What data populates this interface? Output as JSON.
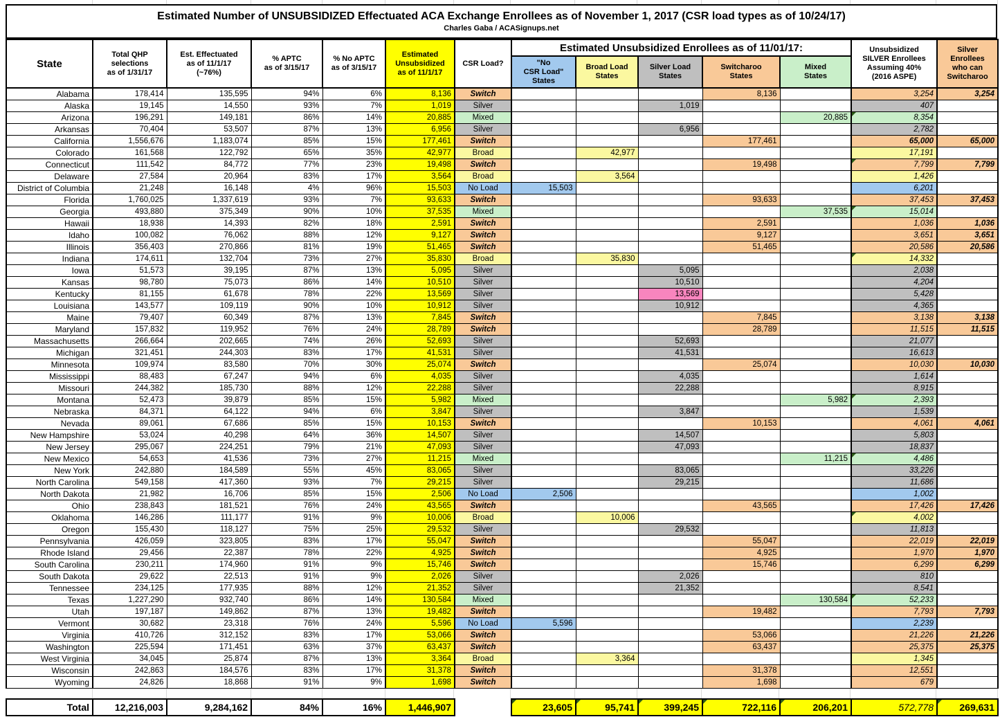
{
  "title": "Estimated Number of UNSUBSIDIZED Effectuated ACA Exchange Enrollees as of November 1, 2017 (CSR load types as of 10/24/17)",
  "subtitle": "Charles Gaba / ACASignups.net",
  "columns": {
    "state": "State",
    "qhp": "Total QHP\nselections\nas of 1/31/17",
    "eff": "Est. Effectuated\nas of 11/1/17\n(~76%)",
    "aptc": "% APTC\nas of 3/15/17",
    "noaptc": "% No APTC\nas of 3/15/17",
    "unsub": "Estimated\nUnsubsidized\nas of 11/1/17",
    "csr": "CSR Load?",
    "group": "Estimated Unsubsidized Enrollees as of 11/01/17:",
    "noload": "\"No\nCSR Load\"\nStates",
    "broad": "Broad Load\nStates",
    "silverload": "Silver Load\nStates",
    "switcharoo": "Switcharoo\nStates",
    "mixed": "Mixed\nStates",
    "silver40": "Unsubsidized\nSILVER Enrollees\nAssuming 40%\n(2016 ASPE)",
    "canswitch": "Silver\nEnrollees\nwho can\nSwitcharoo"
  },
  "colors": {
    "unsub_yellow": "#FFFF00",
    "no_load_blue": "#A2C9EE",
    "broad_pale_yellow": "#FBF8A0",
    "silver_gray": "#BFBFBF",
    "switcharoo_orange": "#F9C998",
    "mixed_green": "#C9EFC9",
    "kentucky_pink": "#F885BE",
    "note_flag_green": "#2D5C17"
  },
  "load_type_labels": [
    "Switch",
    "Silver",
    "Mixed",
    "Broad",
    "No Load"
  ],
  "rows": [
    {
      "state": "Alabama",
      "qhp": "178,414",
      "eff": "135,595",
      "aptc": "94%",
      "noaptc": "6%",
      "unsub": "8,136",
      "load": "Switch",
      "s40": "3,254",
      "sw": "3,254"
    },
    {
      "state": "Alaska",
      "qhp": "19,145",
      "eff": "14,550",
      "aptc": "93%",
      "noaptc": "7%",
      "unsub": "1,019",
      "load": "Silver",
      "s40": "407",
      "sw": ""
    },
    {
      "state": "Arizona",
      "qhp": "196,291",
      "eff": "149,181",
      "aptc": "86%",
      "noaptc": "14%",
      "unsub": "20,885",
      "load": "Mixed",
      "s40": "8,354",
      "sw": "",
      "flag": true
    },
    {
      "state": "Arkansas",
      "qhp": "70,404",
      "eff": "53,507",
      "aptc": "87%",
      "noaptc": "13%",
      "unsub": "6,956",
      "load": "Silver",
      "s40": "2,782",
      "sw": ""
    },
    {
      "state": "California",
      "qhp": "1,556,676",
      "eff": "1,183,074",
      "aptc": "85%",
      "noaptc": "15%",
      "unsub": "177,461",
      "load": "Switch",
      "s40": "65,000",
      "sw": "65,000",
      "bold": true
    },
    {
      "state": "Colorado",
      "qhp": "161,568",
      "eff": "122,792",
      "aptc": "65%",
      "noaptc": "35%",
      "unsub": "42,977",
      "load": "Broad",
      "s40": "17,191",
      "sw": ""
    },
    {
      "state": "Connecticut",
      "qhp": "111,542",
      "eff": "84,772",
      "aptc": "77%",
      "noaptc": "23%",
      "unsub": "19,498",
      "load": "Switch",
      "s40": "7,799",
      "sw": "7,799",
      "flag": true
    },
    {
      "state": "Delaware",
      "qhp": "27,584",
      "eff": "20,964",
      "aptc": "83%",
      "noaptc": "17%",
      "unsub": "3,564",
      "load": "Broad",
      "s40": "1,426",
      "sw": ""
    },
    {
      "state": "District of Columbia",
      "qhp": "21,248",
      "eff": "16,148",
      "aptc": "4%",
      "noaptc": "96%",
      "unsub": "15,503",
      "load": "No Load",
      "s40": "6,201",
      "sw": ""
    },
    {
      "state": "Florida",
      "qhp": "1,760,025",
      "eff": "1,337,619",
      "aptc": "93%",
      "noaptc": "7%",
      "unsub": "93,633",
      "load": "Switch",
      "s40": "37,453",
      "sw": "37,453"
    },
    {
      "state": "Georgia",
      "qhp": "493,880",
      "eff": "375,349",
      "aptc": "90%",
      "noaptc": "10%",
      "unsub": "37,535",
      "load": "Mixed",
      "s40": "15,014",
      "sw": "",
      "flag": true
    },
    {
      "state": "Hawaii",
      "qhp": "18,938",
      "eff": "14,393",
      "aptc": "82%",
      "noaptc": "18%",
      "unsub": "2,591",
      "load": "Switch",
      "s40": "1,036",
      "sw": "1,036"
    },
    {
      "state": "Idaho",
      "qhp": "100,082",
      "eff": "76,062",
      "aptc": "88%",
      "noaptc": "12%",
      "unsub": "9,127",
      "load": "Switch",
      "s40": "3,651",
      "sw": "3,651"
    },
    {
      "state": "Illinois",
      "qhp": "356,403",
      "eff": "270,866",
      "aptc": "81%",
      "noaptc": "19%",
      "unsub": "51,465",
      "load": "Switch",
      "s40": "20,586",
      "sw": "20,586"
    },
    {
      "state": "Indiana",
      "qhp": "174,611",
      "eff": "132,704",
      "aptc": "73%",
      "noaptc": "27%",
      "unsub": "35,830",
      "load": "Broad",
      "s40": "14,332",
      "sw": "",
      "flag": true
    },
    {
      "state": "Iowa",
      "qhp": "51,573",
      "eff": "39,195",
      "aptc": "87%",
      "noaptc": "13%",
      "unsub": "5,095",
      "load": "Silver",
      "s40": "2,038",
      "sw": ""
    },
    {
      "state": "Kansas",
      "qhp": "98,780",
      "eff": "75,073",
      "aptc": "86%",
      "noaptc": "14%",
      "unsub": "10,510",
      "load": "Silver",
      "s40": "4,204",
      "sw": ""
    },
    {
      "state": "Kentucky",
      "qhp": "81,155",
      "eff": "61,678",
      "aptc": "78%",
      "noaptc": "22%",
      "unsub": "13,569",
      "load": "Silver",
      "s40": "5,428",
      "sw": "",
      "pink": true
    },
    {
      "state": "Louisiana",
      "qhp": "143,577",
      "eff": "109,119",
      "aptc": "90%",
      "noaptc": "10%",
      "unsub": "10,912",
      "load": "Silver",
      "s40": "4,365",
      "sw": ""
    },
    {
      "state": "Maine",
      "qhp": "79,407",
      "eff": "60,349",
      "aptc": "87%",
      "noaptc": "13%",
      "unsub": "7,845",
      "load": "Switch",
      "s40": "3,138",
      "sw": "3,138"
    },
    {
      "state": "Maryland",
      "qhp": "157,832",
      "eff": "119,952",
      "aptc": "76%",
      "noaptc": "24%",
      "unsub": "28,789",
      "load": "Switch",
      "s40": "11,515",
      "sw": "11,515"
    },
    {
      "state": "Massachusetts",
      "qhp": "266,664",
      "eff": "202,665",
      "aptc": "74%",
      "noaptc": "26%",
      "unsub": "52,693",
      "load": "Silver",
      "s40": "21,077",
      "sw": ""
    },
    {
      "state": "Michigan",
      "qhp": "321,451",
      "eff": "244,303",
      "aptc": "83%",
      "noaptc": "17%",
      "unsub": "41,531",
      "load": "Silver",
      "s40": "16,613",
      "sw": ""
    },
    {
      "state": "Minnesota",
      "qhp": "109,974",
      "eff": "83,580",
      "aptc": "70%",
      "noaptc": "30%",
      "unsub": "25,074",
      "load": "Switch",
      "s40": "10,030",
      "sw": "10,030"
    },
    {
      "state": "Mississippi",
      "qhp": "88,483",
      "eff": "67,247",
      "aptc": "94%",
      "noaptc": "6%",
      "unsub": "4,035",
      "load": "Silver",
      "s40": "1,614",
      "sw": ""
    },
    {
      "state": "Missouri",
      "qhp": "244,382",
      "eff": "185,730",
      "aptc": "88%",
      "noaptc": "12%",
      "unsub": "22,288",
      "load": "Silver",
      "s40": "8,915",
      "sw": ""
    },
    {
      "state": "Montana",
      "qhp": "52,473",
      "eff": "39,879",
      "aptc": "85%",
      "noaptc": "15%",
      "unsub": "5,982",
      "load": "Mixed",
      "s40": "2,393",
      "sw": "",
      "flag": true
    },
    {
      "state": "Nebraska",
      "qhp": "84,371",
      "eff": "64,122",
      "aptc": "94%",
      "noaptc": "6%",
      "unsub": "3,847",
      "load": "Silver",
      "s40": "1,539",
      "sw": ""
    },
    {
      "state": "Nevada",
      "qhp": "89,061",
      "eff": "67,686",
      "aptc": "85%",
      "noaptc": "15%",
      "unsub": "10,153",
      "load": "Switch",
      "s40": "4,061",
      "sw": "4,061"
    },
    {
      "state": "New Hampshire",
      "qhp": "53,024",
      "eff": "40,298",
      "aptc": "64%",
      "noaptc": "36%",
      "unsub": "14,507",
      "load": "Silver",
      "s40": "5,803",
      "sw": ""
    },
    {
      "state": "New Jersey",
      "qhp": "295,067",
      "eff": "224,251",
      "aptc": "79%",
      "noaptc": "21%",
      "unsub": "47,093",
      "load": "Silver",
      "s40": "18,837",
      "sw": ""
    },
    {
      "state": "New Mexico",
      "qhp": "54,653",
      "eff": "41,536",
      "aptc": "73%",
      "noaptc": "27%",
      "unsub": "11,215",
      "load": "Mixed",
      "s40": "4,486",
      "sw": "",
      "flag": true
    },
    {
      "state": "New York",
      "qhp": "242,880",
      "eff": "184,589",
      "aptc": "55%",
      "noaptc": "45%",
      "unsub": "83,065",
      "load": "Silver",
      "s40": "33,226",
      "sw": ""
    },
    {
      "state": "North Carolina",
      "qhp": "549,158",
      "eff": "417,360",
      "aptc": "93%",
      "noaptc": "7%",
      "unsub": "29,215",
      "load": "Silver",
      "s40": "11,686",
      "sw": ""
    },
    {
      "state": "North Dakota",
      "qhp": "21,982",
      "eff": "16,706",
      "aptc": "85%",
      "noaptc": "15%",
      "unsub": "2,506",
      "load": "No Load",
      "s40": "1,002",
      "sw": ""
    },
    {
      "state": "Ohio",
      "qhp": "238,843",
      "eff": "181,521",
      "aptc": "76%",
      "noaptc": "24%",
      "unsub": "43,565",
      "load": "Switch",
      "s40": "17,426",
      "sw": "17,426"
    },
    {
      "state": "Oklahoma",
      "qhp": "146,286",
      "eff": "111,177",
      "aptc": "91%",
      "noaptc": "9%",
      "unsub": "10,006",
      "load": "Broad",
      "s40": "4,002",
      "sw": "",
      "flag": true
    },
    {
      "state": "Oregon",
      "qhp": "155,430",
      "eff": "118,127",
      "aptc": "75%",
      "noaptc": "25%",
      "unsub": "29,532",
      "load": "Silver",
      "s40": "11,813",
      "sw": ""
    },
    {
      "state": "Pennsylvania",
      "qhp": "426,059",
      "eff": "323,805",
      "aptc": "83%",
      "noaptc": "17%",
      "unsub": "55,047",
      "load": "Switch",
      "s40": "22,019",
      "sw": "22,019"
    },
    {
      "state": "Rhode Island",
      "qhp": "29,456",
      "eff": "22,387",
      "aptc": "78%",
      "noaptc": "22%",
      "unsub": "4,925",
      "load": "Switch",
      "s40": "1,970",
      "sw": "1,970"
    },
    {
      "state": "South Carolina",
      "qhp": "230,211",
      "eff": "174,960",
      "aptc": "91%",
      "noaptc": "9%",
      "unsub": "15,746",
      "load": "Switch",
      "s40": "6,299",
      "sw": "6,299"
    },
    {
      "state": "South Dakota",
      "qhp": "29,622",
      "eff": "22,513",
      "aptc": "91%",
      "noaptc": "9%",
      "unsub": "2,026",
      "load": "Silver",
      "s40": "810",
      "sw": ""
    },
    {
      "state": "Tennessee",
      "qhp": "234,125",
      "eff": "177,935",
      "aptc": "88%",
      "noaptc": "12%",
      "unsub": "21,352",
      "load": "Silver",
      "s40": "8,541",
      "sw": ""
    },
    {
      "state": "Texas",
      "qhp": "1,227,290",
      "eff": "932,740",
      "aptc": "86%",
      "noaptc": "14%",
      "unsub": "130,584",
      "load": "Mixed",
      "s40": "52,233",
      "sw": "",
      "flag": true
    },
    {
      "state": "Utah",
      "qhp": "197,187",
      "eff": "149,862",
      "aptc": "87%",
      "noaptc": "13%",
      "unsub": "19,482",
      "load": "Switch",
      "s40": "7,793",
      "sw": "7,793"
    },
    {
      "state": "Vermont",
      "qhp": "30,682",
      "eff": "23,318",
      "aptc": "76%",
      "noaptc": "24%",
      "unsub": "5,596",
      "load": "No Load",
      "s40": "2,239",
      "sw": ""
    },
    {
      "state": "Virginia",
      "qhp": "410,726",
      "eff": "312,152",
      "aptc": "83%",
      "noaptc": "17%",
      "unsub": "53,066",
      "load": "Switch",
      "s40": "21,226",
      "sw": "21,226"
    },
    {
      "state": "Washington",
      "qhp": "225,594",
      "eff": "171,451",
      "aptc": "63%",
      "noaptc": "37%",
      "unsub": "63,437",
      "load": "Switch",
      "s40": "25,375",
      "sw": "25,375"
    },
    {
      "state": "West Virginia",
      "qhp": "34,045",
      "eff": "25,874",
      "aptc": "87%",
      "noaptc": "13%",
      "unsub": "3,364",
      "load": "Broad",
      "s40": "1,345",
      "sw": ""
    },
    {
      "state": "Wisconsin",
      "qhp": "242,863",
      "eff": "184,576",
      "aptc": "83%",
      "noaptc": "17%",
      "unsub": "31,378",
      "load": "Switch",
      "s40": "12,551",
      "sw": ""
    },
    {
      "state": "Wyoming",
      "qhp": "24,826",
      "eff": "18,868",
      "aptc": "91%",
      "noaptc": "9%",
      "unsub": "1,698",
      "load": "Switch",
      "s40": "679",
      "sw": ""
    }
  ],
  "total": {
    "label": "Total",
    "qhp": "12,216,003",
    "eff": "9,284,162",
    "aptc": "84%",
    "noaptc": "16%",
    "unsub": "1,446,907",
    "noload": "23,605",
    "broad": "95,741",
    "silverload": "399,245",
    "switcharoo": "722,116",
    "mixed": "206,201",
    "silver40": "572,778",
    "canswitch": "269,631"
  }
}
